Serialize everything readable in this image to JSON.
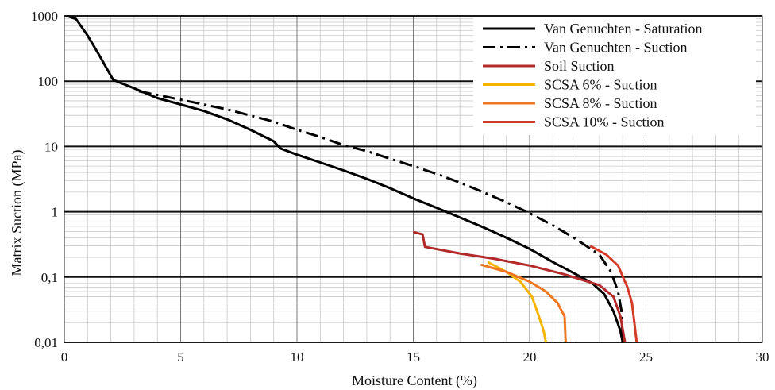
{
  "chart_data": {
    "type": "line",
    "title": "",
    "xlabel": "Moisture Content (%)",
    "ylabel": "Matrix Suction (MPa)",
    "xlim": [
      0,
      30
    ],
    "ylim": [
      0.01,
      1000
    ],
    "y_scale": "log",
    "grid": true,
    "x_ticks": [
      {
        "value": 0,
        "label": "0"
      },
      {
        "value": 5,
        "label": "5"
      },
      {
        "value": 10,
        "label": "10"
      },
      {
        "value": 15,
        "label": "15"
      },
      {
        "value": 20,
        "label": "20"
      },
      {
        "value": 25,
        "label": "25"
      },
      {
        "value": 30,
        "label": "30"
      }
    ],
    "y_ticks": [
      {
        "value": 1000,
        "label": "1000"
      },
      {
        "value": 100,
        "label": "100"
      },
      {
        "value": 10,
        "label": "10"
      },
      {
        "value": 1,
        "label": "1"
      },
      {
        "value": 0.1,
        "label": "0,1"
      },
      {
        "value": 0.01,
        "label": "0,01"
      }
    ],
    "legend_position": "top-right",
    "series": [
      {
        "name": "Van Genuchten - Saturation",
        "color": "#000000",
        "style": "solid",
        "points": [
          [
            0.1,
            1000
          ],
          [
            0.5,
            900
          ],
          [
            1.0,
            500
          ],
          [
            1.5,
            250
          ],
          [
            2.1,
            105
          ],
          [
            3.0,
            78
          ],
          [
            4.0,
            55
          ],
          [
            5.0,
            44
          ],
          [
            6.0,
            35
          ],
          [
            7.0,
            26
          ],
          [
            8.0,
            18
          ],
          [
            9.0,
            12
          ],
          [
            9.3,
            9.3
          ],
          [
            10.0,
            7.5
          ],
          [
            11.0,
            5.7
          ],
          [
            12.0,
            4.3
          ],
          [
            13.0,
            3.2
          ],
          [
            14.0,
            2.3
          ],
          [
            15.0,
            1.6
          ],
          [
            16.0,
            1.15
          ],
          [
            17.0,
            0.82
          ],
          [
            18.0,
            0.58
          ],
          [
            19.0,
            0.4
          ],
          [
            20.0,
            0.27
          ],
          [
            21.0,
            0.17
          ],
          [
            22.0,
            0.11
          ],
          [
            22.7,
            0.08
          ],
          [
            23.2,
            0.055
          ],
          [
            23.6,
            0.03
          ],
          [
            23.9,
            0.015
          ],
          [
            24.0,
            0.01
          ]
        ]
      },
      {
        "name": "Van Genuchten - Suction",
        "color": "#000000",
        "style": "dashdot",
        "points": [
          [
            3.2,
            70
          ],
          [
            5,
            52
          ],
          [
            7,
            37
          ],
          [
            9,
            24
          ],
          [
            10,
            18
          ],
          [
            11,
            14
          ],
          [
            12,
            10.5
          ],
          [
            13,
            8.5
          ],
          [
            14,
            6.5
          ],
          [
            15,
            5.0
          ],
          [
            16,
            3.8
          ],
          [
            17,
            2.8
          ],
          [
            18,
            2.0
          ],
          [
            19,
            1.4
          ],
          [
            20,
            0.95
          ],
          [
            21,
            0.62
          ],
          [
            22,
            0.38
          ],
          [
            23,
            0.22
          ],
          [
            23.5,
            0.12
          ],
          [
            23.8,
            0.06
          ],
          [
            23.95,
            0.03
          ],
          [
            24.0,
            0.01
          ]
        ]
      },
      {
        "name": "Soil Suction",
        "color": "#b22a2a",
        "style": "solid",
        "points": [
          [
            15.0,
            0.49
          ],
          [
            15.4,
            0.45
          ],
          [
            15.5,
            0.29
          ],
          [
            17,
            0.23
          ],
          [
            18.5,
            0.19
          ],
          [
            20,
            0.15
          ],
          [
            21.5,
            0.11
          ],
          [
            23,
            0.075
          ],
          [
            23.6,
            0.05
          ],
          [
            23.9,
            0.025
          ],
          [
            24.1,
            0.01
          ]
        ]
      },
      {
        "name": "SCSA 6% - Suction",
        "color": "#f5b400",
        "style": "solid",
        "points": [
          [
            18.2,
            0.17
          ],
          [
            19,
            0.12
          ],
          [
            19.6,
            0.085
          ],
          [
            20.1,
            0.05
          ],
          [
            20.4,
            0.025
          ],
          [
            20.6,
            0.015
          ],
          [
            20.7,
            0.01
          ]
        ]
      },
      {
        "name": "SCSA 8% - Suction",
        "color": "#ee7722",
        "style": "solid",
        "points": [
          [
            17.9,
            0.155
          ],
          [
            19,
            0.12
          ],
          [
            20,
            0.085
          ],
          [
            20.7,
            0.06
          ],
          [
            21.2,
            0.04
          ],
          [
            21.5,
            0.025
          ],
          [
            21.55,
            0.01
          ]
        ]
      },
      {
        "name": "SCSA 10% - Suction",
        "color": "#d23c28",
        "style": "solid",
        "points": [
          [
            22.6,
            0.3
          ],
          [
            23.3,
            0.22
          ],
          [
            23.8,
            0.15
          ],
          [
            24.2,
            0.07
          ],
          [
            24.4,
            0.04
          ],
          [
            24.5,
            0.02
          ],
          [
            24.6,
            0.01
          ]
        ]
      }
    ]
  }
}
